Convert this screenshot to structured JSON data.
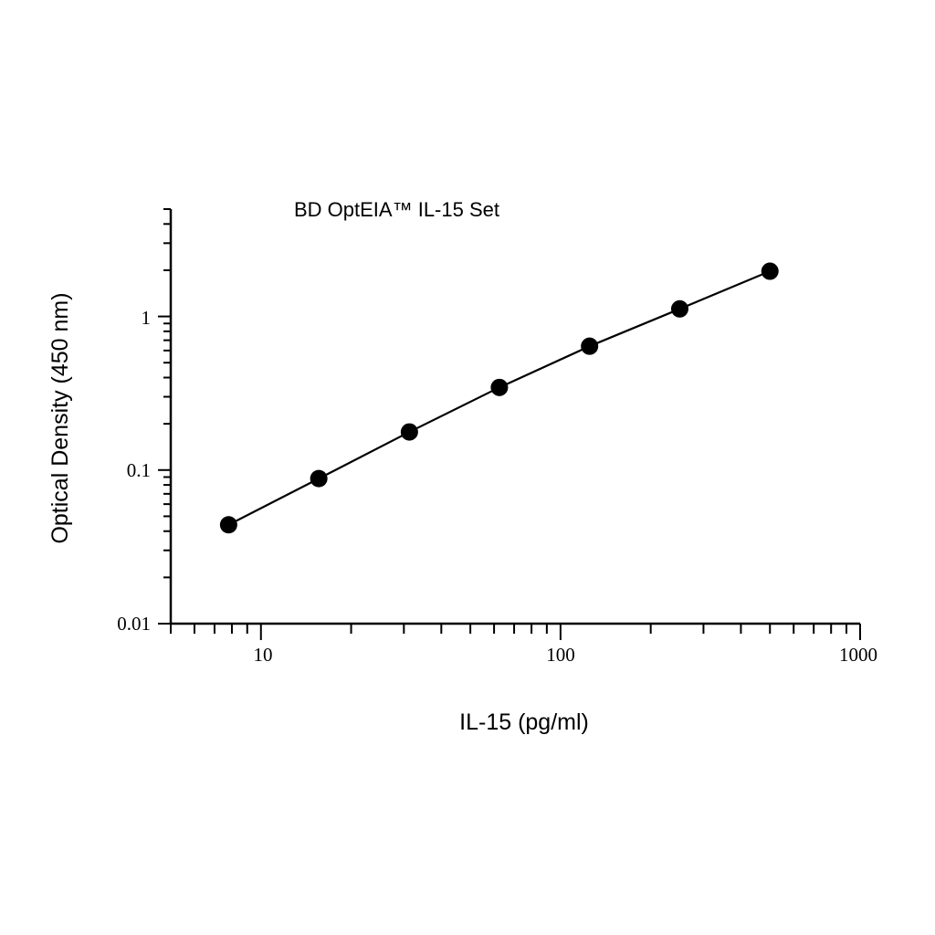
{
  "chart_data": {
    "type": "scatter",
    "title": "BD OptEIA™ IL-15 Set",
    "xlabel": "IL-15 (pg/ml)",
    "ylabel": "Optical Density (450 nm)",
    "x_scale": "log",
    "y_scale": "log",
    "xlim": [
      5,
      1000
    ],
    "ylim": [
      0.01,
      5
    ],
    "x_tick_labels": [
      "10",
      "100",
      "1000"
    ],
    "y_tick_labels": [
      "0.01",
      "0.1",
      "1"
    ],
    "grid": false,
    "legend": "none",
    "series": [
      {
        "x": [
          7.8,
          15.6,
          31.3,
          62.5,
          125,
          250,
          500
        ],
        "y": [
          0.044,
          0.088,
          0.177,
          0.345,
          0.64,
          1.12,
          1.97
        ]
      }
    ],
    "fit_line": true,
    "colors": {
      "marker": "#000000",
      "line": "#000000",
      "axis": "#000000"
    }
  }
}
